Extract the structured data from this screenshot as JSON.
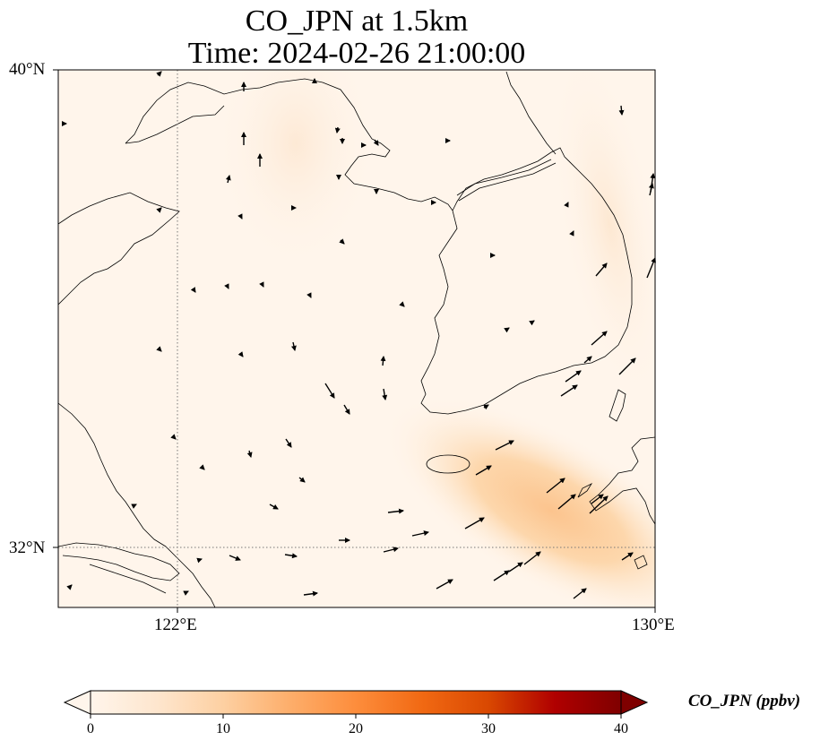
{
  "title": {
    "line1": "CO_JPN at 1.5km",
    "line2": "Time: 2024-02-26 21:00:00"
  },
  "map": {
    "lon_range": [
      120,
      130
    ],
    "lat_range": [
      31,
      40
    ],
    "gridlines": {
      "lons": [
        122
      ],
      "lats": [
        32
      ],
      "style": "dotted"
    },
    "lat_labels": {
      "lat_40": "40°N",
      "lat_32": "32°N"
    },
    "lon_labels": {
      "lon_122": "122°E",
      "lon_130": "130°E"
    },
    "field_colors": {
      "low": "#fff5eb",
      "mid": "#fdd7ac",
      "high": "#fcc48e"
    },
    "plume_center": {
      "lon": 127.2,
      "lat": 32.4,
      "value_ppbv": 12
    }
  },
  "colorbar": {
    "title": "CO_JPN (ppbv)",
    "ticks": [
      "0",
      "10",
      "20",
      "30",
      "40"
    ],
    "range": [
      0,
      40
    ],
    "extend": "both",
    "colormap": [
      "#fff5eb",
      "#fee6ce",
      "#fdd0a2",
      "#fdae6b",
      "#fd8d3c",
      "#f16913",
      "#d94801",
      "#b00000",
      "#7f0000"
    ]
  }
}
